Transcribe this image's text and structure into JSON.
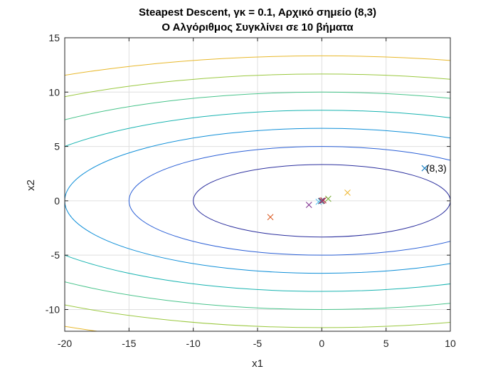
{
  "chart_data": {
    "type": "scatter",
    "title": "Steapest Descent, γκ = 0.1, Αρχικό σημείο (8,3)",
    "subtitle": "Ο Αλγόριθμος Συγκλίνει σε 10 βήματα",
    "xlabel": "x1",
    "ylabel": "x2",
    "xlim": [
      -20,
      10
    ],
    "ylim": [
      -12,
      15
    ],
    "xticks": [
      -20,
      -15,
      -10,
      -5,
      0,
      5,
      10
    ],
    "xtick_labels": [
      "-20",
      "-15",
      "-10",
      "-5",
      "0",
      "5",
      "10"
    ],
    "yticks": [
      -10,
      -5,
      0,
      5,
      10,
      15
    ],
    "ytick_labels": [
      "-10",
      "-5",
      "0",
      "5",
      "10",
      "15"
    ],
    "grid": true,
    "contour": {
      "function": "f(x1,x2) = x1^2/3 + 3*x2^2",
      "levels": [
        33.33,
        75,
        133.33,
        208.33,
        300,
        408.33,
        533.33
      ],
      "colors": [
        "#2b2f9e",
        "#2a5fd6",
        "#0f8fd8",
        "#17b3b0",
        "#47c38a",
        "#9ac83f",
        "#e8b82b"
      ]
    },
    "points": [
      {
        "x": 8,
        "y": 3,
        "color": "#0072bd"
      },
      {
        "x": -4,
        "y": -1.5,
        "color": "#d95319"
      },
      {
        "x": 2,
        "y": 0.75,
        "color": "#edb120"
      },
      {
        "x": -1,
        "y": -0.375,
        "color": "#7e2f8e"
      },
      {
        "x": 0.5,
        "y": 0.1875,
        "color": "#77ac30"
      },
      {
        "x": -0.25,
        "y": -0.094,
        "color": "#4dbeee"
      },
      {
        "x": 0.125,
        "y": 0.047,
        "color": "#a2142f"
      },
      {
        "x": -0.0625,
        "y": -0.023,
        "color": "#0072bd"
      },
      {
        "x": 0.031,
        "y": 0.012,
        "color": "#d95319"
      },
      {
        "x": -0.016,
        "y": -0.006,
        "color": "#edb120"
      },
      {
        "x": 0.008,
        "y": 0.003,
        "color": "#7e2f8e"
      }
    ],
    "annotations": [
      {
        "text": "(8,3)",
        "x": 8,
        "y": 3
      }
    ]
  }
}
